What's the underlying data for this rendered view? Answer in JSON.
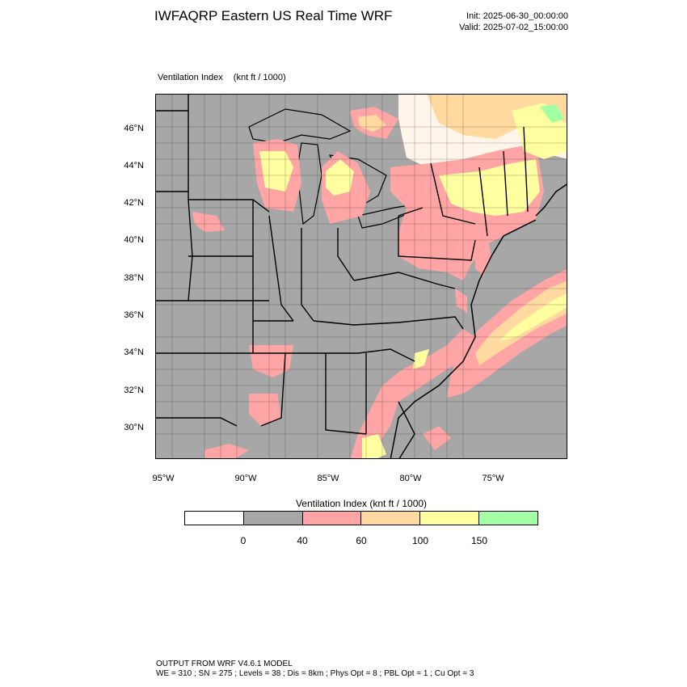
{
  "title": "IWFAQRP Eastern US Real Time WRF",
  "init": "Init: 2025-06-30_00:00:00",
  "valid": "Valid: 2025-07-02_15:00:00",
  "plot_label": {
    "name": "Ventilation Index",
    "units": "(knt ft / 1000)"
  },
  "lat_ticks": [
    "46°N",
    "44°N",
    "42°N",
    "40°N",
    "38°N",
    "36°N",
    "34°N",
    "32°N",
    "30°N"
  ],
  "lon_ticks": [
    "95°W",
    "90°W",
    "85°W",
    "80°W",
    "75°W"
  ],
  "legend": {
    "title": "Ventilation Index  (knt ft / 1000)",
    "colors": [
      "#ffffff",
      "#a7a7a7",
      "#ffa5a5",
      "#ffd9a0",
      "#ffff9f",
      "#a3ffa3"
    ],
    "ticks": [
      "0",
      "40",
      "60",
      "100",
      "150"
    ]
  },
  "footer": {
    "line1": "OUTPUT FROM WRF V4.6.1 MODEL",
    "line2": "WE = 310 ; SN = 275 ; Levels = 38 ; Dis = 8km ; Phys Opt = 8 ; PBL Opt = 1 ; Cu Opt = 3"
  },
  "map_colors": {
    "gray": "#a7a7a7",
    "pink": "#ffa5a5",
    "orange": "#ffd9a0",
    "yellow": "#ffff9f",
    "green": "#a3ffa3",
    "light": "#fff5ea"
  }
}
